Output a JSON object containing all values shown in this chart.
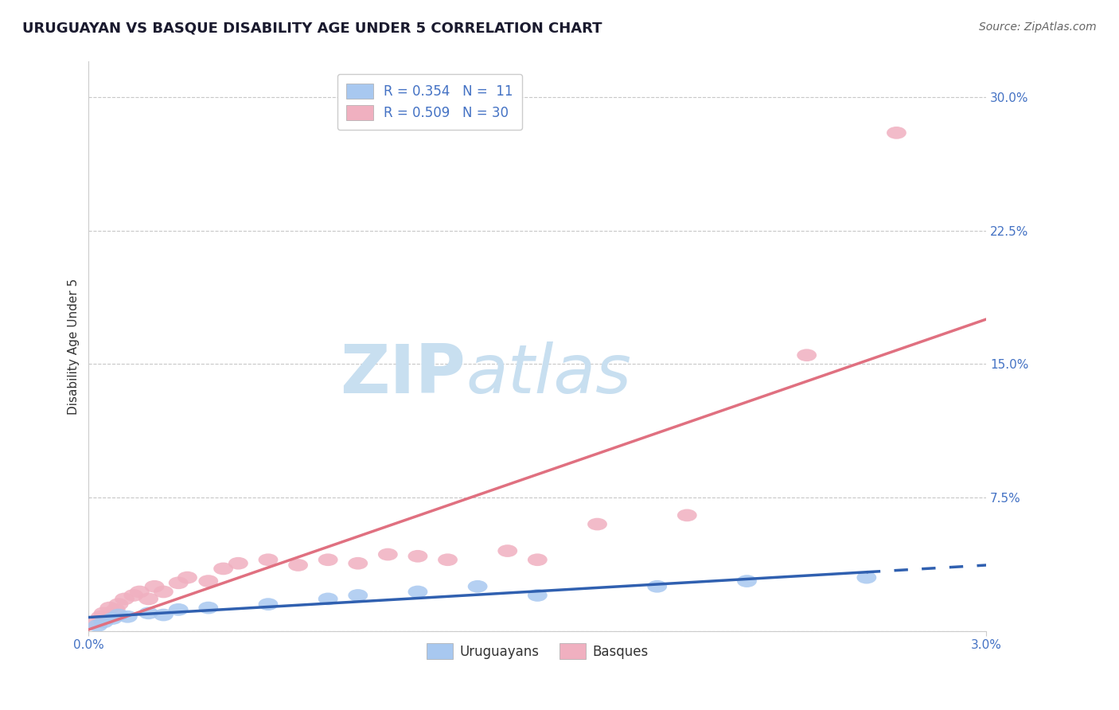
{
  "title": "URUGUAYAN VS BASQUE DISABILITY AGE UNDER 5 CORRELATION CHART",
  "source": "Source: ZipAtlas.com",
  "ylabel": "Disability Age Under 5",
  "xlim": [
    0.0,
    0.03
  ],
  "ylim": [
    0.0,
    0.32
  ],
  "ytick_values": [
    0.0,
    0.075,
    0.15,
    0.225,
    0.3
  ],
  "uruguayan_color": "#a8c8f0",
  "basque_color": "#f0b0c0",
  "uruguayan_line_color": "#3060b0",
  "basque_line_color": "#e07080",
  "uruguayan_x": [
    0.0003,
    0.0005,
    0.0008,
    0.001,
    0.0013,
    0.002,
    0.0025,
    0.003,
    0.004,
    0.006,
    0.008,
    0.009,
    0.011,
    0.013,
    0.015,
    0.019,
    0.022,
    0.026
  ],
  "uruguayan_y": [
    0.003,
    0.005,
    0.007,
    0.009,
    0.008,
    0.01,
    0.009,
    0.012,
    0.013,
    0.015,
    0.018,
    0.02,
    0.022,
    0.025,
    0.02,
    0.025,
    0.028,
    0.03
  ],
  "basque_x": [
    0.0002,
    0.0004,
    0.0005,
    0.0007,
    0.0009,
    0.001,
    0.0012,
    0.0015,
    0.0017,
    0.002,
    0.0022,
    0.0025,
    0.003,
    0.0033,
    0.004,
    0.0045,
    0.005,
    0.006,
    0.007,
    0.008,
    0.009,
    0.01,
    0.011,
    0.012,
    0.014,
    0.015,
    0.017,
    0.02,
    0.024,
    0.027
  ],
  "basque_y": [
    0.005,
    0.008,
    0.01,
    0.013,
    0.012,
    0.015,
    0.018,
    0.02,
    0.022,
    0.018,
    0.025,
    0.022,
    0.027,
    0.03,
    0.028,
    0.035,
    0.038,
    0.04,
    0.037,
    0.04,
    0.038,
    0.043,
    0.042,
    0.04,
    0.045,
    0.04,
    0.06,
    0.065,
    0.155,
    0.28
  ],
  "background_color": "#ffffff",
  "grid_color": "#c8c8c8",
  "watermark_zip": "ZIP",
  "watermark_atlas": "atlas",
  "watermark_color": "#c8dff0",
  "title_fontsize": 13,
  "axis_label_fontsize": 11,
  "tick_fontsize": 11,
  "legend_fontsize": 12,
  "source_fontsize": 10
}
